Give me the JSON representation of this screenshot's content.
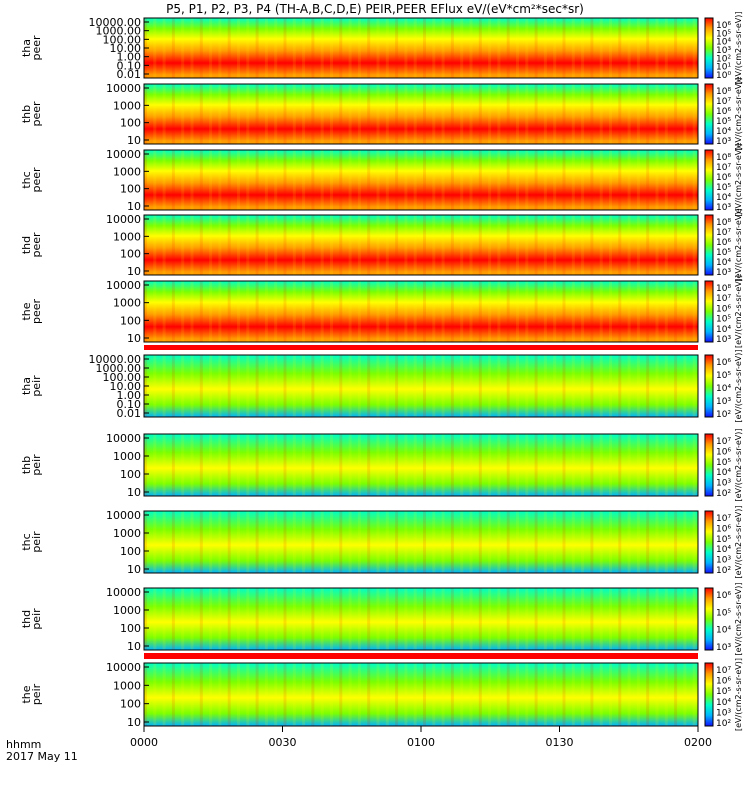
{
  "title": "P5, P1, P2, P3, P4 (TH-A,B,C,D,E) PEIR,PEER EFlux eV/(eV*cm²*sec*sr)",
  "footer": {
    "time_label": "hhmm",
    "date_label": "2017 May 11"
  },
  "xaxis": {
    "ticks": [
      "0000",
      "0030",
      "0100",
      "0130",
      "0200"
    ],
    "range_hhmm": [
      "0000",
      "0200"
    ]
  },
  "colorbar": {
    "unit_label": "[eV/(cm2-s-sr-eV)]",
    "colors": [
      "#1010ff",
      "#00b4ff",
      "#00ffc8",
      "#7bff00",
      "#ffff00",
      "#ff9b00",
      "#ff0000"
    ]
  },
  "chart_data": [
    {
      "type": "heatmap",
      "ylabel": [
        "tha",
        "peer"
      ],
      "yticks": [
        "10000.00",
        "1000.00",
        "100.00",
        "10.00",
        "1.00",
        "0.10",
        "0.01"
      ],
      "colorbar_ticks": [
        "10⁶",
        "10⁵",
        "10⁴",
        "10³",
        "10²",
        "10¹",
        "10⁰"
      ]
    },
    {
      "type": "heatmap",
      "ylabel": [
        "thb",
        "peer"
      ],
      "yticks": [
        "10000",
        "1000",
        "100",
        "10"
      ],
      "colorbar_ticks": [
        "10⁸",
        "10⁷",
        "10⁶",
        "10⁵",
        "10⁴",
        "10³"
      ]
    },
    {
      "type": "heatmap",
      "ylabel": [
        "thc",
        "peer"
      ],
      "yticks": [
        "10000",
        "1000",
        "100",
        "10"
      ],
      "colorbar_ticks": [
        "10⁸",
        "10⁷",
        "10⁶",
        "10⁵",
        "10⁴",
        "10³"
      ]
    },
    {
      "type": "heatmap",
      "ylabel": [
        "thd",
        "peer"
      ],
      "yticks": [
        "10000",
        "1000",
        "100",
        "10"
      ],
      "colorbar_ticks": [
        "10⁸",
        "10⁷",
        "10⁶",
        "10⁵",
        "10⁴",
        "10³"
      ]
    },
    {
      "type": "heatmap",
      "ylabel": [
        "the",
        "peer"
      ],
      "yticks": [
        "10000",
        "1000",
        "100",
        "10"
      ],
      "colorbar_ticks": [
        "10⁸",
        "10⁷",
        "10⁶",
        "10⁵",
        "10⁴",
        "10³"
      ]
    },
    {
      "type": "heatmap",
      "ylabel": [
        "tha",
        "peir"
      ],
      "yticks": [
        "10000.00",
        "1000.00",
        "100.00",
        "10.00",
        "1.00",
        "0.10",
        "0.01"
      ],
      "colorbar_ticks": [
        "10⁶",
        "10⁵",
        "10⁴",
        "10³",
        "10²"
      ]
    },
    {
      "type": "heatmap",
      "ylabel": [
        "thb",
        "peir"
      ],
      "yticks": [
        "10000",
        "1000",
        "100",
        "10"
      ],
      "colorbar_ticks": [
        "10⁷",
        "10⁶",
        "10⁵",
        "10⁴",
        "10³",
        "10²"
      ]
    },
    {
      "type": "heatmap",
      "ylabel": [
        "thc",
        "peir"
      ],
      "yticks": [
        "10000",
        "1000",
        "100",
        "10"
      ],
      "colorbar_ticks": [
        "10⁷",
        "10⁶",
        "10⁵",
        "10⁴",
        "10³",
        "10²"
      ]
    },
    {
      "type": "heatmap",
      "ylabel": [
        "thd",
        "peir"
      ],
      "yticks": [
        "10000",
        "1000",
        "100",
        "10"
      ],
      "colorbar_ticks": [
        "10⁶",
        "10⁵",
        "10⁴",
        "10³"
      ]
    },
    {
      "type": "heatmap",
      "ylabel": [
        "the",
        "peir"
      ],
      "yticks": [
        "10000",
        "1000",
        "100",
        "10"
      ],
      "colorbar_ticks": [
        "10⁷",
        "10⁶",
        "10⁵",
        "10⁴",
        "10³",
        "10²"
      ]
    }
  ]
}
